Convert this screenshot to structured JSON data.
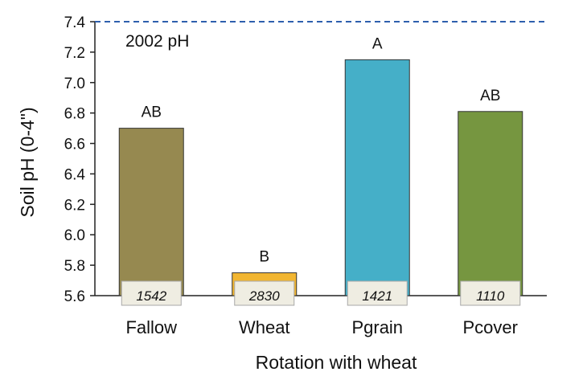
{
  "chart_data": {
    "type": "bar",
    "categories": [
      "Fallow",
      "Wheat",
      "Pgrain",
      "Pcover"
    ],
    "values": [
      6.7,
      5.75,
      7.15,
      6.81
    ],
    "significance_letters": [
      "AB",
      "B",
      "A",
      "AB"
    ],
    "counts": [
      "1542",
      "2830",
      "1421",
      "1110"
    ],
    "bar_colors": [
      "#968950",
      "#f2b632",
      "#45afc8",
      "#769640"
    ],
    "count_box_color": "#efede2",
    "reference_line": {
      "value": 7.4,
      "label": "2002 pH",
      "color": "#2e5fad",
      "style": "dashed"
    },
    "xlabel": "Rotation with wheat",
    "ylabel": "Soil pH (0-4\")",
    "ylim": [
      5.6,
      7.4
    ],
    "yticks": [
      "5.6",
      "5.8",
      "6.0",
      "6.2",
      "6.4",
      "6.6",
      "6.8",
      "7.0",
      "7.2",
      "7.4"
    ],
    "grid": false,
    "legend": "none"
  }
}
